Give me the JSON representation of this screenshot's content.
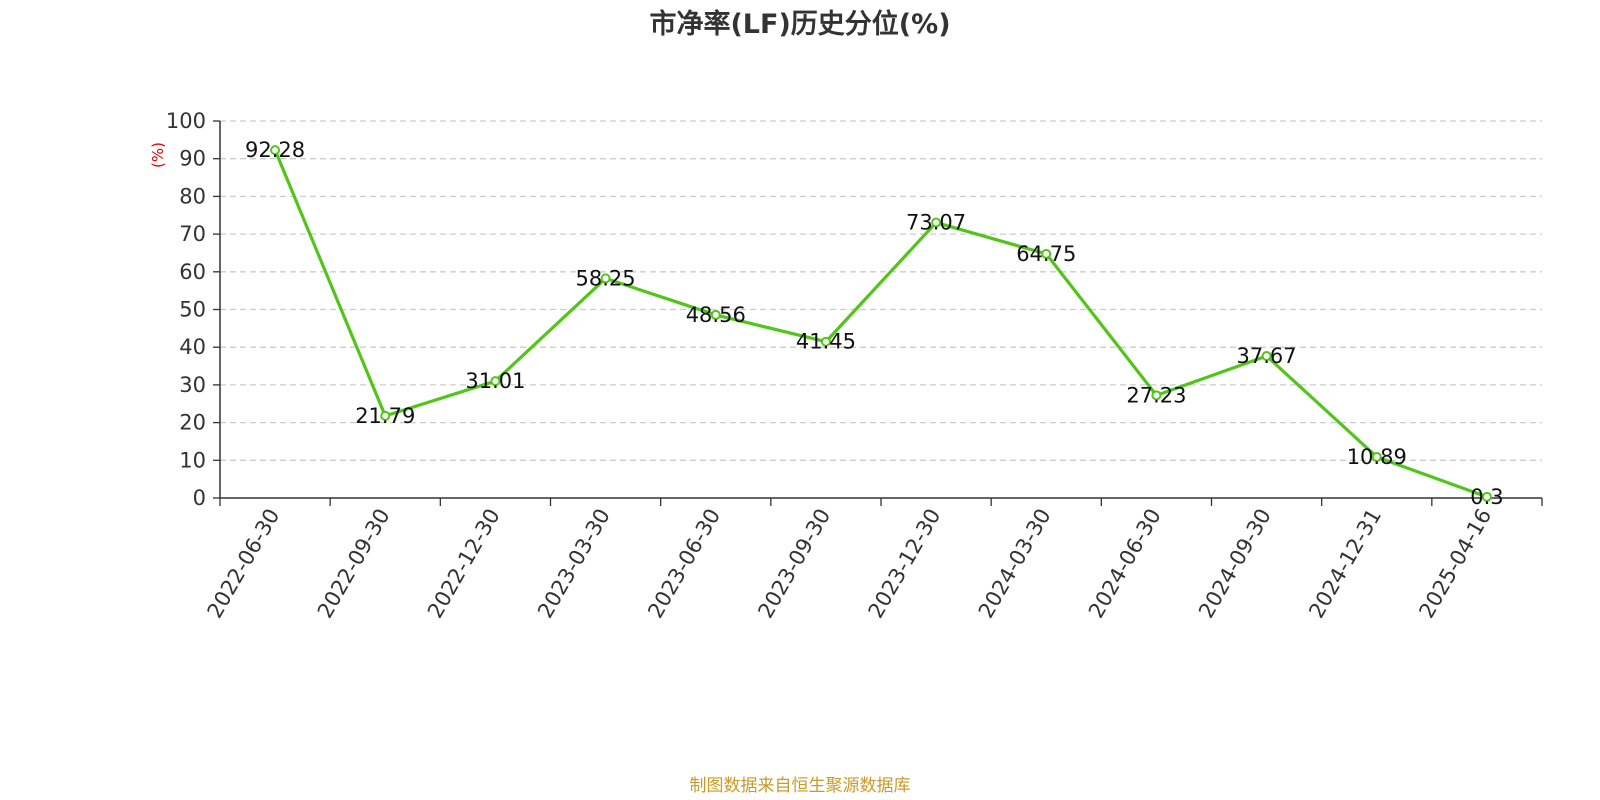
{
  "chart_data": {
    "type": "line",
    "title": "市净率(LF)历史分位(%)",
    "ylabel": "(%)",
    "xlabel": "",
    "categories": [
      "2022-06-30",
      "2022-09-30",
      "2022-12-30",
      "2023-03-30",
      "2023-06-30",
      "2023-09-30",
      "2023-12-30",
      "2024-03-30",
      "2024-06-30",
      "2024-09-30",
      "2024-12-31",
      "2025-04-16"
    ],
    "series": [
      {
        "values": [
          92.28,
          21.79,
          31.01,
          58.25,
          48.56,
          41.45,
          73.07,
          64.75,
          27.23,
          37.67,
          10.89,
          0.3
        ],
        "labels": [
          "92.28",
          "21.79",
          "31.01",
          "58.25",
          "48.56",
          "41.45",
          "73.07",
          "64.75",
          "27.23",
          "37.67",
          "10.89",
          "0.3"
        ]
      }
    ],
    "yticks": [
      "0",
      "10",
      "20",
      "30",
      "40",
      "50",
      "60",
      "70",
      "80",
      "90",
      "100"
    ],
    "ylim": [
      0,
      100
    ],
    "grid": "horizontal dashed",
    "line_color": "#52c41a",
    "footer": "制图数据来自恒生聚源数据库"
  }
}
